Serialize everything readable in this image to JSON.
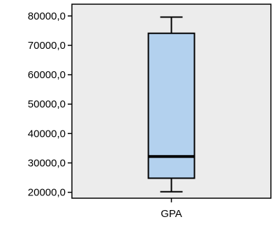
{
  "chart_data": {
    "type": "boxplot",
    "title": "",
    "xlabel": "",
    "ylabel": "",
    "categories": [
      "GPA"
    ],
    "ylim": [
      18000,
      84000
    ],
    "y_ticks": [
      20000,
      30000,
      40000,
      50000,
      60000,
      70000,
      80000
    ],
    "y_tick_labels": [
      "20000,0",
      "30000,0",
      "40000,0",
      "50000,0",
      "60000,0",
      "70000,0",
      "80000,0"
    ],
    "boxes": [
      {
        "category": "GPA",
        "min": 20200,
        "q1": 24800,
        "median": 32200,
        "q3": 74100,
        "max": 79600
      }
    ],
    "grid": false,
    "colors": {
      "plot_bg": "#ececec",
      "box_fill": "#b3d1ee",
      "stroke": "#000000"
    }
  }
}
